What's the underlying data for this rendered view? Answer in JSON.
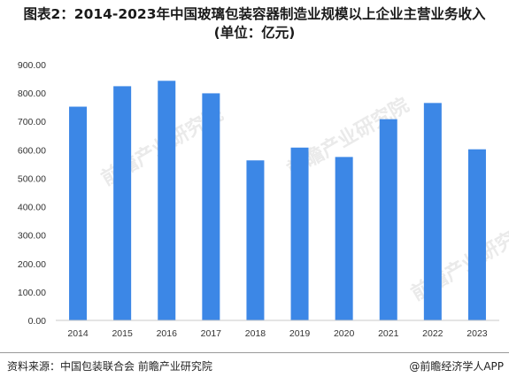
{
  "header": {
    "title_line1": "图表2：2014-2023年中国玻璃包装容器制造业规模以上企业主营业务收入",
    "title_line2": "(单位：亿元)"
  },
  "chart_data": {
    "type": "bar",
    "title": "图表2：2014-2023年中国玻璃包装容器制造业规模以上企业主营业务收入(单位：亿元)",
    "xlabel": "",
    "ylabel": "",
    "categories": [
      "2014",
      "2015",
      "2016",
      "2017",
      "2018",
      "2019",
      "2020",
      "2021",
      "2022",
      "2023"
    ],
    "values": [
      752,
      824,
      843,
      799,
      563,
      608,
      575,
      708,
      765,
      602
    ],
    "ylim": [
      0,
      900
    ],
    "yticks": [
      "0.00",
      "100.00",
      "200.00",
      "300.00",
      "400.00",
      "500.00",
      "600.00",
      "700.00",
      "800.00",
      "900.00"
    ],
    "grid": false,
    "legend": "none",
    "bar_color": "#3c87e6"
  },
  "footer": {
    "source": "资料来源：中国包装联合会 前瞻产业研究院",
    "brand": "@前瞻经济学人APP"
  }
}
